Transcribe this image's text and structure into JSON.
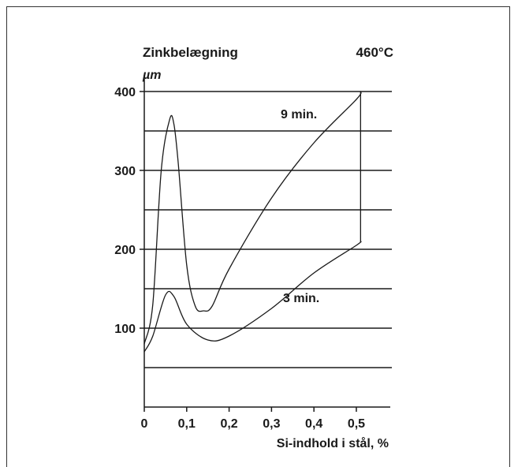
{
  "chart_data": {
    "type": "line",
    "title": "Zinkbelægning",
    "ylabel": "µm",
    "annotation": "460°C",
    "xlabel": "Si-indhold i stål, %",
    "xlim": [
      0,
      0.58
    ],
    "ylim": [
      0,
      400
    ],
    "xticks": [
      "0",
      "0,1",
      "0,2",
      "0,3",
      "0,4",
      "0,5"
    ],
    "xtick_values": [
      0,
      0.1,
      0.2,
      0.3,
      0.4,
      0.5
    ],
    "yticks": [
      "100",
      "200",
      "300",
      "400"
    ],
    "ytick_values": [
      100,
      200,
      300,
      400
    ],
    "grid_lines_y": [
      50,
      100,
      150,
      200,
      250,
      300,
      350,
      400
    ],
    "series": [
      {
        "name": "9 min.",
        "x": [
          0,
          0.02,
          0.04,
          0.06,
          0.07,
          0.08,
          0.1,
          0.12,
          0.14,
          0.16,
          0.2,
          0.3,
          0.4,
          0.5,
          0.51
        ],
        "y": [
          80,
          130,
          300,
          365,
          358,
          310,
          180,
          128,
          122,
          128,
          175,
          265,
          335,
          390,
          400
        ]
      },
      {
        "name": "3 min.",
        "x": [
          0,
          0.02,
          0.05,
          0.07,
          0.1,
          0.15,
          0.2,
          0.3,
          0.4,
          0.5,
          0.51
        ],
        "y": [
          70,
          90,
          142,
          140,
          105,
          85,
          90,
          125,
          170,
          205,
          210
        ]
      }
    ],
    "grid": true,
    "legend": "inline labels"
  }
}
